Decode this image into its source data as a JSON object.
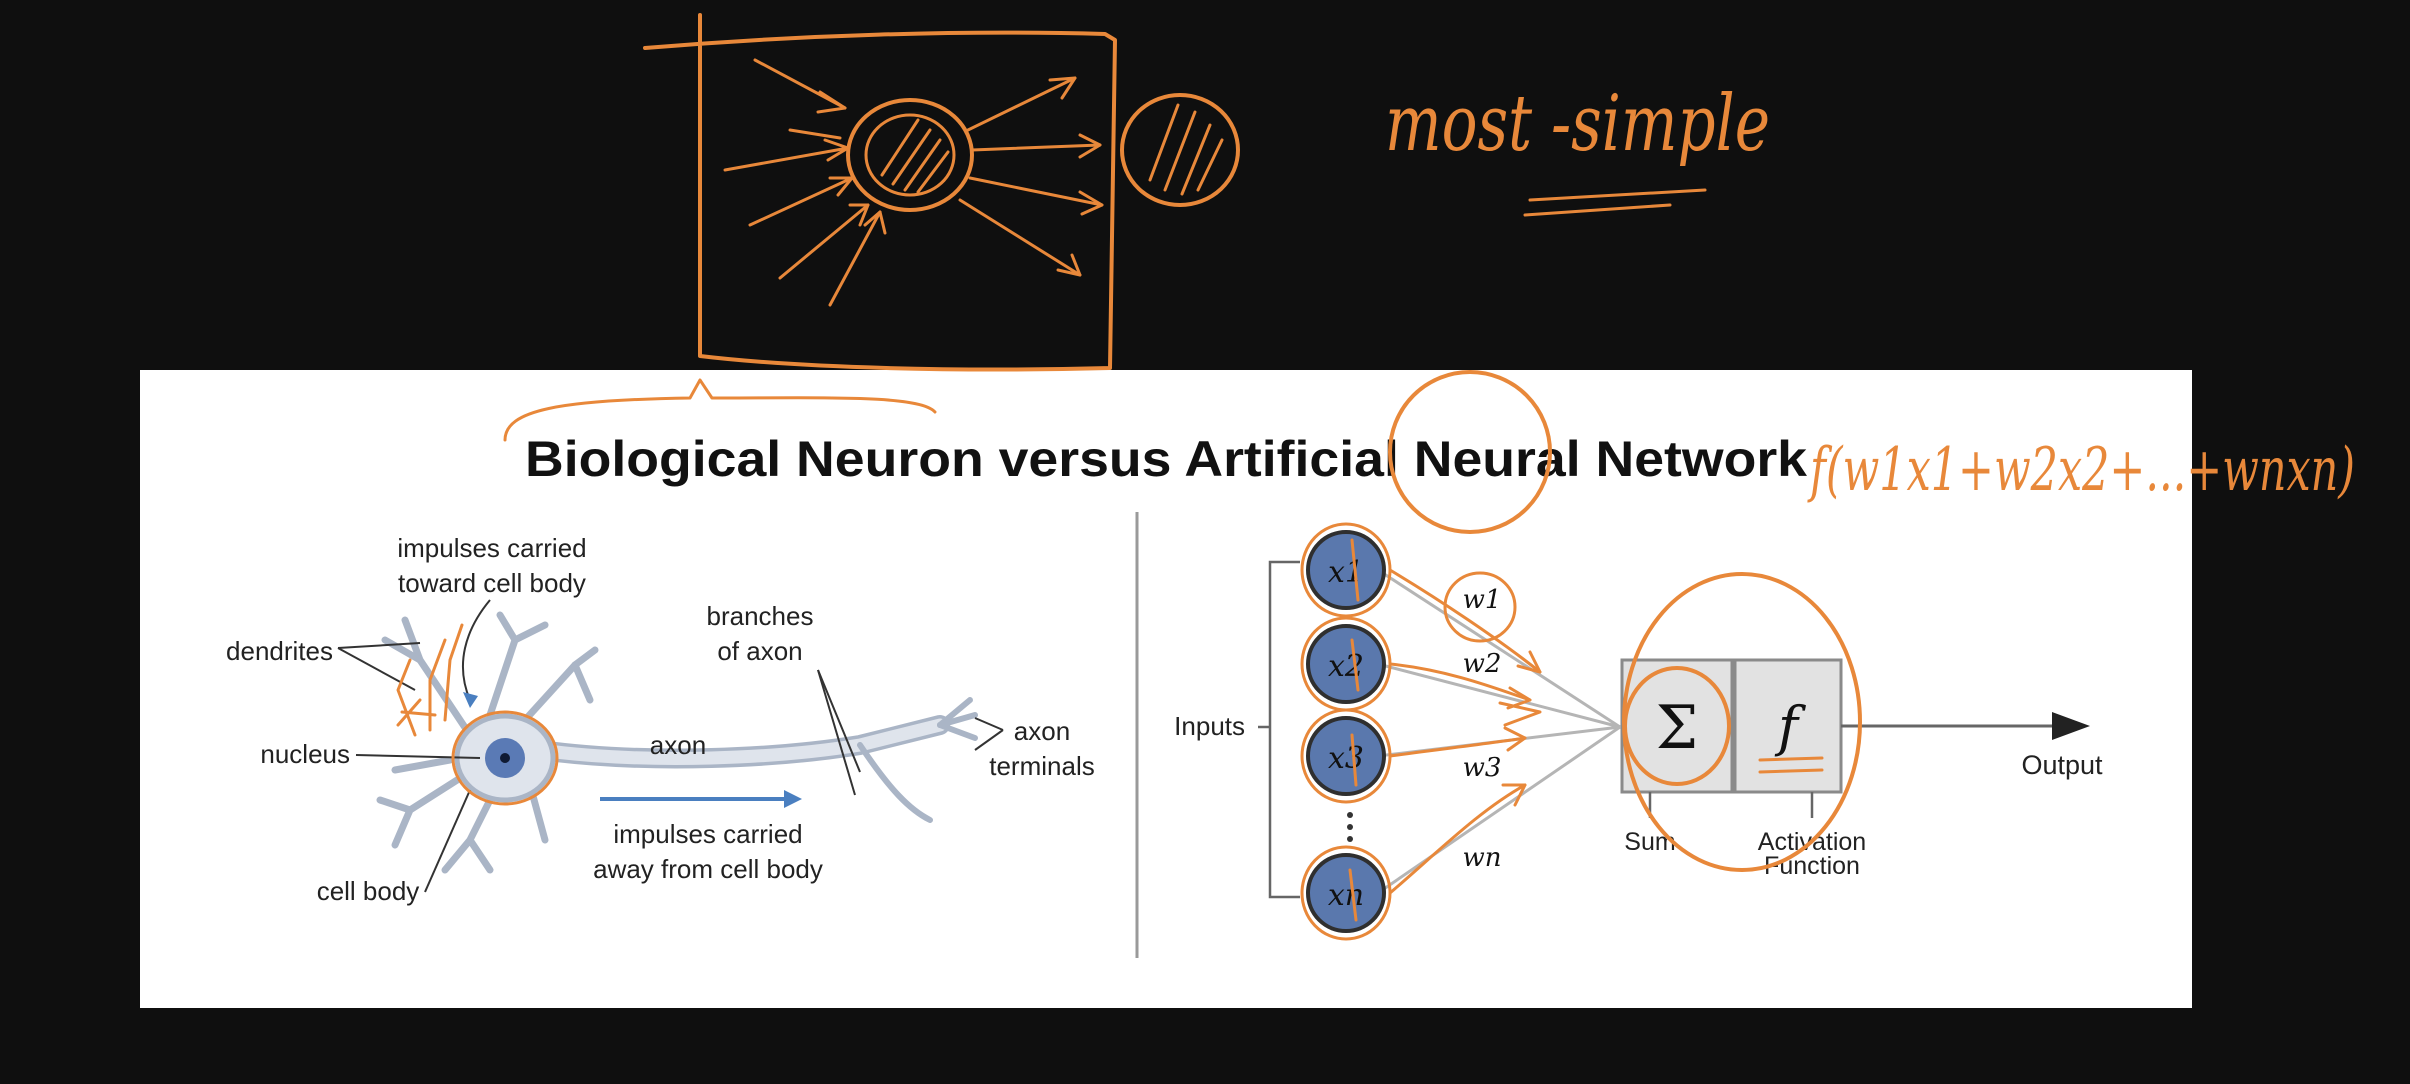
{
  "whiteboard": {
    "handwritten_note": "most -simple",
    "handwritten_formula": "f(w1x1+w2x2+...+wnxn)"
  },
  "slide": {
    "title": "Biological Neuron versus Artificial Neural Network",
    "biological": {
      "impulses_toward": [
        "impulses carried",
        "toward cell body"
      ],
      "dendrites": "dendrites",
      "nucleus": "nucleus",
      "cell_body": "cell body",
      "axon": "axon",
      "branches": [
        "branches",
        "of axon"
      ],
      "terminals": [
        "axon",
        "terminals"
      ],
      "impulses_away": [
        "impulses carried",
        "away from cell body"
      ]
    },
    "artificial": {
      "inputs": "Inputs",
      "nodes": [
        "x1",
        "x2",
        "x3",
        "xn"
      ],
      "weights": [
        "w1",
        "w2",
        "w3",
        "wn"
      ],
      "sum_symbol": "Σ",
      "func_symbol": "f",
      "sum_label": "Sum",
      "activation_label": [
        "Activation",
        "Function"
      ],
      "output": "Output"
    }
  },
  "colors": {
    "annotation": "#e8883a",
    "background": "#0f0f0f",
    "slide": "#ffffff",
    "neuron_blue": "#5a78ad",
    "arrow_blue": "#4a7fc0"
  }
}
